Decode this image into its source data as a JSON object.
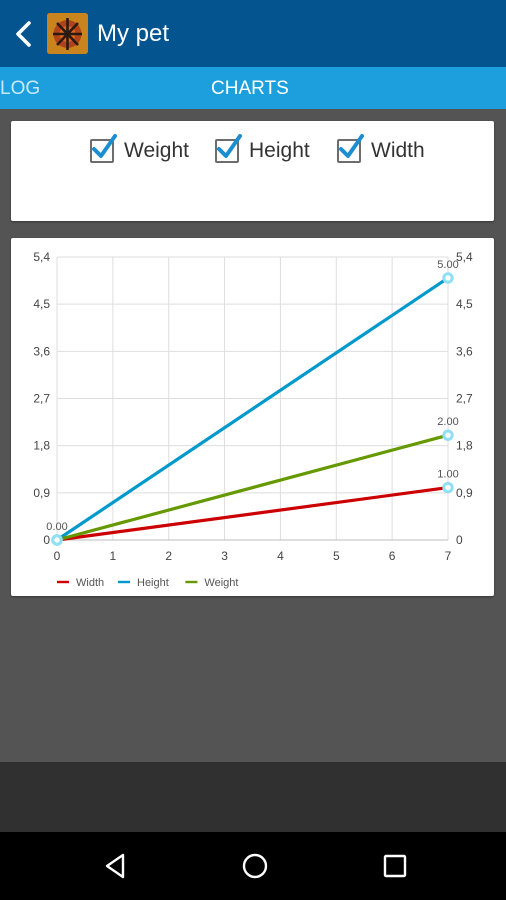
{
  "app_bar": {
    "title": "My pet",
    "back_icon": "chevron-left-icon",
    "logo_icon": "pet-app-logo"
  },
  "tabs": [
    {
      "label": "LOG",
      "selected": false
    },
    {
      "label": "CHARTS",
      "selected": true
    }
  ],
  "filters": [
    {
      "label": "Weight",
      "checked": true
    },
    {
      "label": "Height",
      "checked": true
    },
    {
      "label": "Width",
      "checked": true
    }
  ],
  "chart_data": {
    "type": "line",
    "x": [
      0,
      7
    ],
    "series": [
      {
        "name": "Width",
        "color": "#cc0000",
        "values": [
          0,
          1.0
        ]
      },
      {
        "name": "Height",
        "color": "#0099cc",
        "values": [
          0,
          5.0
        ]
      },
      {
        "name": "Weight",
        "color": "#669900",
        "values": [
          0,
          2.0
        ]
      }
    ],
    "point_labels": [
      {
        "series": "Width",
        "index": 0,
        "text": "0.00"
      },
      {
        "series": "Width",
        "index": 1,
        "text": "1.00"
      },
      {
        "series": "Height",
        "index": 1,
        "text": "5.00"
      },
      {
        "series": "Weight",
        "index": 1,
        "text": "2.00"
      }
    ],
    "xticks": [
      "0",
      "1",
      "2",
      "3",
      "4",
      "5",
      "6",
      "7"
    ],
    "yticks_left": [
      "0",
      "0,9",
      "1,8",
      "2,7",
      "3,6",
      "4,5",
      "5,4"
    ],
    "yticks_right": [
      "0",
      "0,9",
      "1,8",
      "2,7",
      "3,6",
      "4,5",
      "5,4"
    ],
    "xlim": [
      0,
      7
    ],
    "ylim": [
      0,
      5.4
    ],
    "grid": true,
    "legend_position": "bottom-left",
    "marker_color": "#8fdff5"
  },
  "colors": {
    "app_bar": "#04548f",
    "tab_bar": "#1e9fdd",
    "checkbox_check": "#1a8ed1"
  },
  "nav_bar": {
    "back": "nav-back-icon",
    "home": "nav-home-icon",
    "recents": "nav-recents-icon"
  }
}
